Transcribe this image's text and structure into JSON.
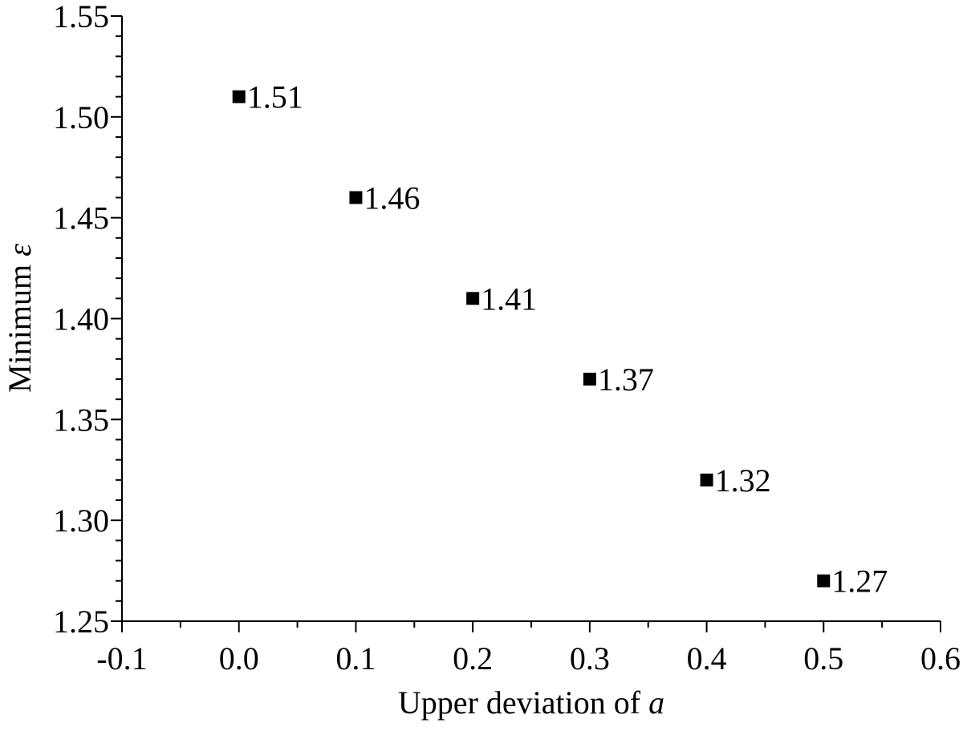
{
  "chart_data": {
    "type": "scatter",
    "title": "",
    "xlabel": "Upper deviation of",
    "xlabel_var": "a",
    "ylabel": "Minimum",
    "ylabel_var": "ε",
    "xlim": [
      -0.1,
      0.6
    ],
    "ylim": [
      1.25,
      1.55
    ],
    "x_ticks": [
      "-0.1",
      "0.0",
      "0.1",
      "0.2",
      "0.3",
      "0.4",
      "0.5",
      "0.6"
    ],
    "y_ticks": [
      "1.25",
      "1.30",
      "1.35",
      "1.40",
      "1.45",
      "1.50",
      "1.55"
    ],
    "grid": false,
    "legend": "none",
    "marker": "filled-square",
    "marker_color": "#000000",
    "series": [
      {
        "x": [
          0.0,
          0.1,
          0.2,
          0.3,
          0.4,
          0.5
        ],
        "y": [
          1.51,
          1.46,
          1.41,
          1.37,
          1.32,
          1.27
        ],
        "labels": [
          "1.51",
          "1.46",
          "1.41",
          "1.37",
          "1.32",
          "1.27"
        ]
      }
    ]
  }
}
